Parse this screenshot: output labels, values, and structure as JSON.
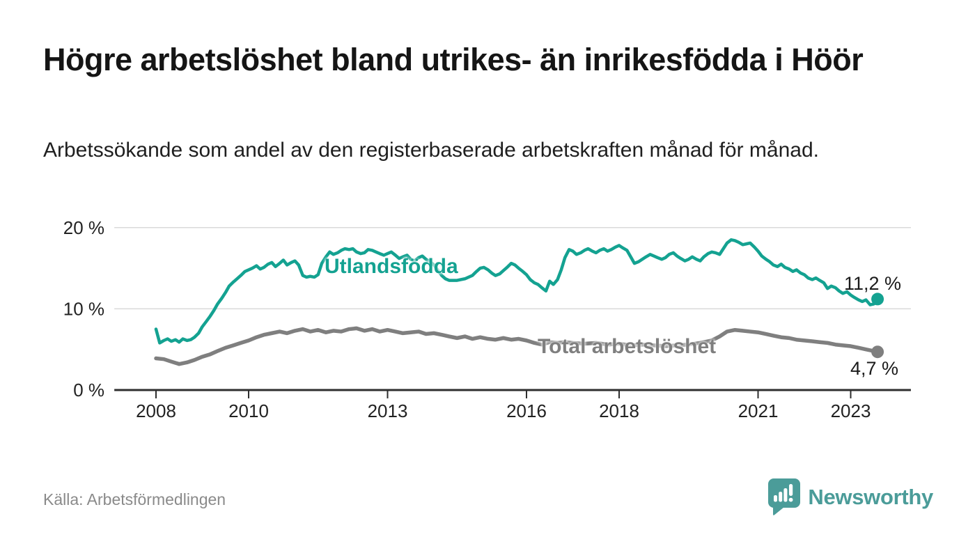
{
  "header": {
    "title": "Högre arbetslöshet bland utrikes- än inrikesfödda i Höör",
    "subtitle": "Arbetssökande som andel av den registerbaserade arbetskraften månad för månad."
  },
  "footer": {
    "source": "Källa: Arbetsförmedlingen",
    "brand": "Newsworthy"
  },
  "colors": {
    "utlandsfodda": "#14a291",
    "total": "#7f7f7f",
    "grid": "#d9d9d9",
    "axis": "#2e2e2e",
    "tick_label": "#222222",
    "brand_teal": "#4b9c99"
  },
  "chart_data": {
    "type": "line",
    "title": "Högre arbetslöshet bland utrikes- än inrikesfödda i Höör",
    "subtitle": "Arbetssökande som andel av den registerbaserade arbetskraften månad för månad.",
    "unit": "%",
    "grid": true,
    "x_axis": {
      "ticks": [
        {
          "year": 2008,
          "label": "2008"
        },
        {
          "year": 2010,
          "label": "2010"
        },
        {
          "year": 2013,
          "label": "2013"
        },
        {
          "year": 2016,
          "label": "2016"
        },
        {
          "year": 2018,
          "label": "2018"
        },
        {
          "year": 2021,
          "label": "2021"
        },
        {
          "year": 2023,
          "label": "2023"
        }
      ],
      "range": [
        2007.1,
        2024.3
      ]
    },
    "y_axis": {
      "ticks": [
        {
          "value": 0,
          "label": "0 %"
        },
        {
          "value": 10,
          "label": "10 %"
        },
        {
          "value": 20,
          "label": "20 %"
        }
      ],
      "range": [
        0,
        20
      ]
    },
    "series": [
      {
        "name": "Utlandsfödda",
        "color": "#14a291",
        "end_label": "11,2 %",
        "end_value": 11.2,
        "points": [
          [
            2008.0,
            7.5
          ],
          [
            2008.08,
            5.8
          ],
          [
            2008.17,
            6.1
          ],
          [
            2008.25,
            6.3
          ],
          [
            2008.33,
            6.0
          ],
          [
            2008.42,
            6.2
          ],
          [
            2008.5,
            5.9
          ],
          [
            2008.58,
            6.3
          ],
          [
            2008.67,
            6.1
          ],
          [
            2008.75,
            6.2
          ],
          [
            2008.83,
            6.5
          ],
          [
            2008.92,
            7.0
          ],
          [
            2009.0,
            7.8
          ],
          [
            2009.08,
            8.4
          ],
          [
            2009.17,
            9.1
          ],
          [
            2009.25,
            9.8
          ],
          [
            2009.33,
            10.6
          ],
          [
            2009.42,
            11.3
          ],
          [
            2009.5,
            12.0
          ],
          [
            2009.58,
            12.8
          ],
          [
            2009.67,
            13.3
          ],
          [
            2009.75,
            13.7
          ],
          [
            2009.83,
            14.1
          ],
          [
            2009.92,
            14.6
          ],
          [
            2010.0,
            14.8
          ],
          [
            2010.08,
            15.0
          ],
          [
            2010.17,
            15.3
          ],
          [
            2010.25,
            14.9
          ],
          [
            2010.33,
            15.1
          ],
          [
            2010.42,
            15.5
          ],
          [
            2010.5,
            15.7
          ],
          [
            2010.58,
            15.2
          ],
          [
            2010.67,
            15.6
          ],
          [
            2010.75,
            16.0
          ],
          [
            2010.83,
            15.4
          ],
          [
            2010.92,
            15.7
          ],
          [
            2011.0,
            15.9
          ],
          [
            2011.08,
            15.4
          ],
          [
            2011.17,
            14.1
          ],
          [
            2011.25,
            13.9
          ],
          [
            2011.33,
            14.0
          ],
          [
            2011.42,
            13.9
          ],
          [
            2011.5,
            14.2
          ],
          [
            2011.58,
            15.6
          ],
          [
            2011.67,
            16.4
          ],
          [
            2011.75,
            17.0
          ],
          [
            2011.83,
            16.7
          ],
          [
            2011.92,
            16.9
          ],
          [
            2012.0,
            17.2
          ],
          [
            2012.08,
            17.4
          ],
          [
            2012.17,
            17.3
          ],
          [
            2012.25,
            17.4
          ],
          [
            2012.33,
            17.0
          ],
          [
            2012.42,
            16.8
          ],
          [
            2012.5,
            16.9
          ],
          [
            2012.58,
            17.3
          ],
          [
            2012.67,
            17.2
          ],
          [
            2012.75,
            17.0
          ],
          [
            2012.83,
            16.8
          ],
          [
            2012.92,
            16.6
          ],
          [
            2013.0,
            16.8
          ],
          [
            2013.08,
            17.0
          ],
          [
            2013.17,
            16.6
          ],
          [
            2013.25,
            16.2
          ],
          [
            2013.33,
            16.4
          ],
          [
            2013.42,
            16.6
          ],
          [
            2013.5,
            16.1
          ],
          [
            2013.58,
            15.9
          ],
          [
            2013.67,
            16.3
          ],
          [
            2013.75,
            16.5
          ],
          [
            2013.83,
            16.1
          ],
          [
            2013.92,
            15.8
          ],
          [
            2014.0,
            15.4
          ],
          [
            2014.08,
            14.8
          ],
          [
            2014.17,
            14.1
          ],
          [
            2014.25,
            13.7
          ],
          [
            2014.33,
            13.5
          ],
          [
            2014.5,
            13.5
          ],
          [
            2014.67,
            13.7
          ],
          [
            2014.83,
            14.1
          ],
          [
            2014.92,
            14.6
          ],
          [
            2015.0,
            15.0
          ],
          [
            2015.08,
            15.1
          ],
          [
            2015.17,
            14.8
          ],
          [
            2015.25,
            14.4
          ],
          [
            2015.33,
            14.1
          ],
          [
            2015.42,
            14.3
          ],
          [
            2015.5,
            14.7
          ],
          [
            2015.58,
            15.1
          ],
          [
            2015.67,
            15.6
          ],
          [
            2015.75,
            15.4
          ],
          [
            2015.83,
            15.0
          ],
          [
            2015.92,
            14.6
          ],
          [
            2016.0,
            14.2
          ],
          [
            2016.08,
            13.6
          ],
          [
            2016.17,
            13.2
          ],
          [
            2016.25,
            13.0
          ],
          [
            2016.33,
            12.6
          ],
          [
            2016.42,
            12.2
          ],
          [
            2016.5,
            13.4
          ],
          [
            2016.58,
            13.0
          ],
          [
            2016.67,
            13.6
          ],
          [
            2016.75,
            14.8
          ],
          [
            2016.83,
            16.3
          ],
          [
            2016.92,
            17.3
          ],
          [
            2017.0,
            17.1
          ],
          [
            2017.08,
            16.7
          ],
          [
            2017.17,
            16.9
          ],
          [
            2017.25,
            17.2
          ],
          [
            2017.33,
            17.4
          ],
          [
            2017.42,
            17.1
          ],
          [
            2017.5,
            16.9
          ],
          [
            2017.58,
            17.2
          ],
          [
            2017.67,
            17.4
          ],
          [
            2017.75,
            17.1
          ],
          [
            2017.83,
            17.3
          ],
          [
            2017.92,
            17.6
          ],
          [
            2018.0,
            17.8
          ],
          [
            2018.08,
            17.5
          ],
          [
            2018.17,
            17.2
          ],
          [
            2018.25,
            16.4
          ],
          [
            2018.33,
            15.6
          ],
          [
            2018.42,
            15.8
          ],
          [
            2018.5,
            16.1
          ],
          [
            2018.58,
            16.4
          ],
          [
            2018.67,
            16.7
          ],
          [
            2018.75,
            16.5
          ],
          [
            2018.83,
            16.3
          ],
          [
            2018.92,
            16.1
          ],
          [
            2019.0,
            16.3
          ],
          [
            2019.08,
            16.7
          ],
          [
            2019.17,
            16.9
          ],
          [
            2019.25,
            16.5
          ],
          [
            2019.33,
            16.2
          ],
          [
            2019.42,
            15.9
          ],
          [
            2019.5,
            16.1
          ],
          [
            2019.58,
            16.4
          ],
          [
            2019.67,
            16.1
          ],
          [
            2019.75,
            15.9
          ],
          [
            2019.83,
            16.4
          ],
          [
            2019.92,
            16.8
          ],
          [
            2020.0,
            17.0
          ],
          [
            2020.08,
            16.9
          ],
          [
            2020.17,
            16.7
          ],
          [
            2020.25,
            17.4
          ],
          [
            2020.33,
            18.1
          ],
          [
            2020.42,
            18.5
          ],
          [
            2020.5,
            18.4
          ],
          [
            2020.58,
            18.2
          ],
          [
            2020.67,
            17.9
          ],
          [
            2020.75,
            18.0
          ],
          [
            2020.83,
            18.1
          ],
          [
            2020.92,
            17.6
          ],
          [
            2021.0,
            17.1
          ],
          [
            2021.08,
            16.5
          ],
          [
            2021.17,
            16.1
          ],
          [
            2021.25,
            15.8
          ],
          [
            2021.33,
            15.4
          ],
          [
            2021.42,
            15.2
          ],
          [
            2021.5,
            15.5
          ],
          [
            2021.58,
            15.1
          ],
          [
            2021.67,
            14.9
          ],
          [
            2021.75,
            14.6
          ],
          [
            2021.83,
            14.8
          ],
          [
            2021.92,
            14.4
          ],
          [
            2022.0,
            14.2
          ],
          [
            2022.08,
            13.8
          ],
          [
            2022.17,
            13.6
          ],
          [
            2022.25,
            13.8
          ],
          [
            2022.33,
            13.5
          ],
          [
            2022.42,
            13.2
          ],
          [
            2022.5,
            12.5
          ],
          [
            2022.58,
            12.8
          ],
          [
            2022.67,
            12.6
          ],
          [
            2022.75,
            12.2
          ],
          [
            2022.83,
            11.9
          ],
          [
            2022.92,
            12.1
          ],
          [
            2023.0,
            11.7
          ],
          [
            2023.08,
            11.4
          ],
          [
            2023.17,
            11.1
          ],
          [
            2023.25,
            10.9
          ],
          [
            2023.33,
            11.1
          ],
          [
            2023.42,
            10.5
          ],
          [
            2023.5,
            10.6
          ],
          [
            2023.58,
            11.2
          ]
        ]
      },
      {
        "name": "Total arbetslöshet",
        "color": "#7f7f7f",
        "end_label": "4,7 %",
        "end_value": 4.7,
        "points": [
          [
            2008.0,
            3.9
          ],
          [
            2008.17,
            3.8
          ],
          [
            2008.33,
            3.5
          ],
          [
            2008.5,
            3.2
          ],
          [
            2008.67,
            3.4
          ],
          [
            2008.83,
            3.7
          ],
          [
            2009.0,
            4.1
          ],
          [
            2009.17,
            4.4
          ],
          [
            2009.33,
            4.8
          ],
          [
            2009.5,
            5.2
          ],
          [
            2009.67,
            5.5
          ],
          [
            2009.83,
            5.8
          ],
          [
            2010.0,
            6.1
          ],
          [
            2010.17,
            6.5
          ],
          [
            2010.33,
            6.8
          ],
          [
            2010.5,
            7.0
          ],
          [
            2010.67,
            7.2
          ],
          [
            2010.83,
            7.0
          ],
          [
            2011.0,
            7.3
          ],
          [
            2011.17,
            7.5
          ],
          [
            2011.33,
            7.2
          ],
          [
            2011.5,
            7.4
          ],
          [
            2011.67,
            7.1
          ],
          [
            2011.83,
            7.3
          ],
          [
            2012.0,
            7.2
          ],
          [
            2012.17,
            7.5
          ],
          [
            2012.33,
            7.6
          ],
          [
            2012.5,
            7.3
          ],
          [
            2012.67,
            7.5
          ],
          [
            2012.83,
            7.2
          ],
          [
            2013.0,
            7.4
          ],
          [
            2013.17,
            7.2
          ],
          [
            2013.33,
            7.0
          ],
          [
            2013.5,
            7.1
          ],
          [
            2013.67,
            7.2
          ],
          [
            2013.83,
            6.9
          ],
          [
            2014.0,
            7.0
          ],
          [
            2014.17,
            6.8
          ],
          [
            2014.33,
            6.6
          ],
          [
            2014.5,
            6.4
          ],
          [
            2014.67,
            6.6
          ],
          [
            2014.83,
            6.3
          ],
          [
            2015.0,
            6.5
          ],
          [
            2015.17,
            6.3
          ],
          [
            2015.33,
            6.2
          ],
          [
            2015.5,
            6.4
          ],
          [
            2015.67,
            6.2
          ],
          [
            2015.83,
            6.3
          ],
          [
            2016.0,
            6.1
          ],
          [
            2016.17,
            5.8
          ],
          [
            2016.33,
            5.6
          ],
          [
            2016.5,
            5.9
          ],
          [
            2016.67,
            5.8
          ],
          [
            2016.83,
            5.9
          ],
          [
            2017.0,
            5.8
          ],
          [
            2017.25,
            5.7
          ],
          [
            2017.5,
            5.8
          ],
          [
            2017.75,
            5.6
          ],
          [
            2018.0,
            5.7
          ],
          [
            2018.25,
            5.5
          ],
          [
            2018.5,
            5.6
          ],
          [
            2018.75,
            5.5
          ],
          [
            2019.0,
            5.4
          ],
          [
            2019.25,
            5.5
          ],
          [
            2019.5,
            5.6
          ],
          [
            2019.75,
            5.8
          ],
          [
            2020.0,
            6.1
          ],
          [
            2020.17,
            6.6
          ],
          [
            2020.33,
            7.2
          ],
          [
            2020.5,
            7.4
          ],
          [
            2020.67,
            7.3
          ],
          [
            2020.83,
            7.2
          ],
          [
            2021.0,
            7.1
          ],
          [
            2021.17,
            6.9
          ],
          [
            2021.33,
            6.7
          ],
          [
            2021.5,
            6.5
          ],
          [
            2021.67,
            6.4
          ],
          [
            2021.83,
            6.2
          ],
          [
            2022.0,
            6.1
          ],
          [
            2022.17,
            6.0
          ],
          [
            2022.33,
            5.9
          ],
          [
            2022.5,
            5.8
          ],
          [
            2022.67,
            5.6
          ],
          [
            2022.83,
            5.5
          ],
          [
            2023.0,
            5.4
          ],
          [
            2023.17,
            5.2
          ],
          [
            2023.33,
            5.0
          ],
          [
            2023.5,
            4.8
          ],
          [
            2023.58,
            4.7
          ]
        ]
      }
    ],
    "legend_position": "inline-labels"
  }
}
